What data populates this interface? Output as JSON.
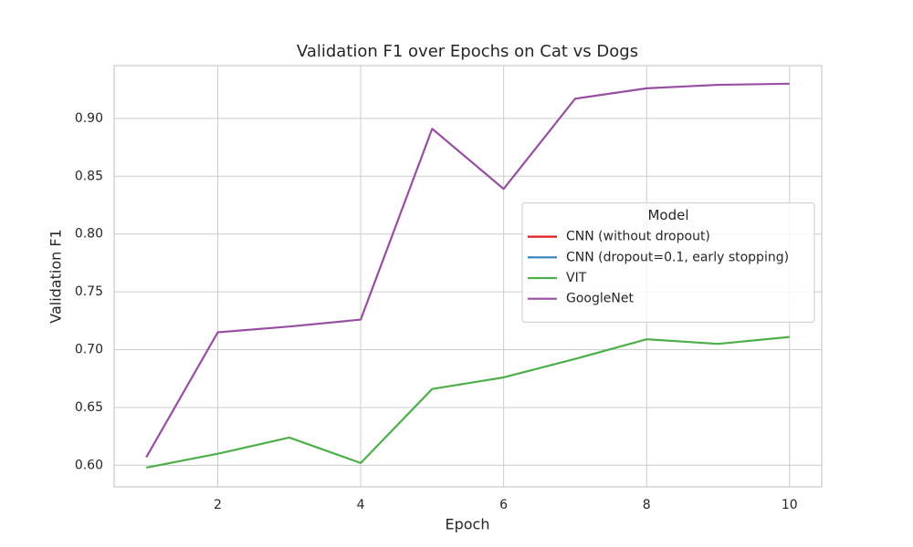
{
  "chart_data": {
    "type": "line",
    "title": "Validation F1 over Epochs on Cat vs Dogs",
    "xlabel": "Epoch",
    "ylabel": "Validation F1",
    "x": [
      1,
      2,
      3,
      4,
      5,
      6,
      7,
      8,
      9,
      10
    ],
    "series": [
      {
        "name": "CNN (without dropout)",
        "color": "#e41a1c",
        "values": [
          null,
          null,
          null,
          null,
          null,
          null,
          null,
          null,
          null,
          null
        ]
      },
      {
        "name": "CNN (dropout=0.1, early stopping)",
        "color": "#377eb8",
        "values": [
          null,
          null,
          null,
          null,
          null,
          null,
          null,
          null,
          null,
          null
        ]
      },
      {
        "name": "VIT",
        "color": "#4daf4a",
        "values": [
          0.598,
          0.61,
          0.624,
          0.602,
          0.666,
          0.676,
          0.692,
          0.709,
          0.705,
          0.711
        ]
      },
      {
        "name": "GoogleNet",
        "color": "#984ea3",
        "values": [
          0.607,
          0.715,
          0.72,
          0.726,
          0.891,
          0.839,
          0.917,
          0.926,
          0.929,
          0.93
        ]
      }
    ],
    "legend_title": "Model",
    "legend": "center right",
    "xlim": [
      0.55,
      10.45
    ],
    "xticks": [
      2,
      4,
      6,
      8,
      10
    ],
    "ylim": [
      0.5814,
      0.9456
    ],
    "yticks": [
      {
        "value": 0.6,
        "label": "0.60"
      },
      {
        "value": 0.65,
        "label": "0.65"
      },
      {
        "value": 0.7,
        "label": "0.70"
      },
      {
        "value": 0.75,
        "label": "0.75"
      },
      {
        "value": 0.8,
        "label": "0.80"
      },
      {
        "value": 0.85,
        "label": "0.85"
      },
      {
        "value": 0.9,
        "label": "0.90"
      }
    ],
    "grid": true
  }
}
